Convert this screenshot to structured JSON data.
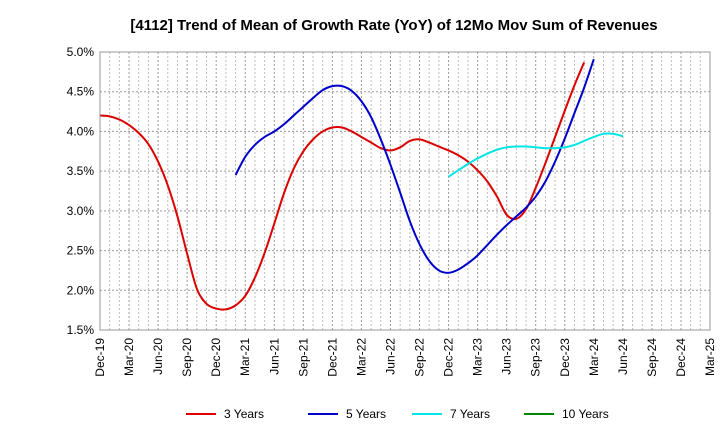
{
  "chart_data": {
    "type": "line",
    "title": "[4112]  Trend of Mean of Growth Rate (YoY) of 12Mo Mov Sum of Revenues",
    "xlabel": "",
    "ylabel": "",
    "ylim": [
      1.5,
      5.0
    ],
    "yticks": [
      "5.0%",
      "4.5%",
      "4.0%",
      "3.5%",
      "3.0%",
      "2.5%",
      "2.0%",
      "1.5%"
    ],
    "ytick_values": [
      5.0,
      4.5,
      4.0,
      3.5,
      3.0,
      2.5,
      2.0,
      1.5
    ],
    "x_categories": [
      "Dec-19",
      "Mar-20",
      "Jun-20",
      "Sep-20",
      "Dec-20",
      "Mar-21",
      "Jun-21",
      "Sep-21",
      "Dec-21",
      "Mar-22",
      "Jun-22",
      "Sep-22",
      "Dec-22",
      "Mar-23",
      "Jun-23",
      "Sep-23",
      "Dec-23",
      "Mar-24",
      "Jun-24",
      "Sep-24",
      "Dec-24",
      "Mar-25"
    ],
    "grid": true,
    "legend_position": "bottom",
    "series": [
      {
        "name": "3 Years",
        "color": "#dd0000",
        "values": [
          4.2,
          4.19,
          4.15,
          4.08,
          3.98,
          3.84,
          3.62,
          3.32,
          2.93,
          2.46,
          2.02,
          1.83,
          1.77,
          1.76,
          1.81,
          1.93,
          2.16,
          2.47,
          2.84,
          3.22,
          3.53,
          3.75,
          3.9,
          4.0,
          4.05,
          4.05,
          4.0,
          3.93,
          3.86,
          3.79,
          3.76,
          3.8,
          3.88,
          3.9,
          3.86,
          3.81,
          3.76,
          3.7,
          3.62,
          3.51,
          3.37,
          3.18,
          2.95,
          2.9,
          3.02,
          3.29,
          3.6,
          3.93,
          4.26,
          4.58,
          4.87
        ],
        "start_index": 0
      },
      {
        "name": "5 Years",
        "color": "#0000cc",
        "values": [
          3.45,
          3.68,
          3.83,
          3.93,
          4.0,
          4.09,
          4.2,
          4.31,
          4.42,
          4.52,
          4.57,
          4.57,
          4.51,
          4.38,
          4.18,
          3.9,
          3.58,
          3.23,
          2.87,
          2.58,
          2.37,
          2.25,
          2.22,
          2.26,
          2.34,
          2.44,
          2.57,
          2.7,
          2.82,
          2.93,
          3.04,
          3.18,
          3.37,
          3.62,
          3.91,
          4.23,
          4.55,
          4.91
        ],
        "start_index": 14
      },
      {
        "name": "7 Years",
        "color": "#00e5e5",
        "values": [
          3.43,
          3.51,
          3.59,
          3.66,
          3.72,
          3.77,
          3.8,
          3.81,
          3.81,
          3.8,
          3.79,
          3.79,
          3.8,
          3.83,
          3.88,
          3.93,
          3.97,
          3.97,
          3.94
        ],
        "start_index": 36
      },
      {
        "name": "10 Years",
        "color": "#008800",
        "values": [],
        "start_index": 0
      }
    ]
  }
}
